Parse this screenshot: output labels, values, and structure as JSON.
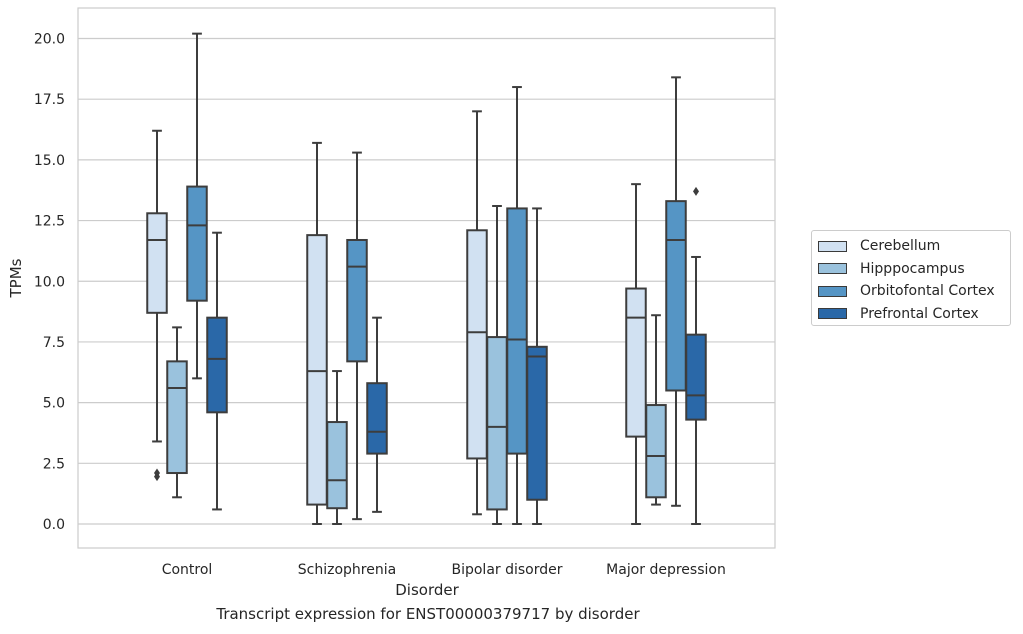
{
  "chart_data": {
    "type": "box",
    "xlabel": "Disorder",
    "ylabel": "TPMs",
    "caption": "Transcript expression for ENST00000379717 by disorder",
    "ylim": [
      -1.0,
      21.2
    ],
    "yticks": [
      "0.0",
      "2.5",
      "5.0",
      "7.5",
      "10.0",
      "12.5",
      "15.0",
      "17.5",
      "20.0"
    ],
    "grid": "horizontal",
    "legend_position": "right",
    "categories": [
      "Control",
      "Schizophrenia",
      "Bipolar disorder",
      "Major depression"
    ],
    "series": [
      {
        "name": "Cerebellum",
        "color": "#d1e1f2",
        "boxes": [
          {
            "whisker_low": 3.4,
            "q1": 8.7,
            "median": 11.7,
            "q3": 12.8,
            "whisker_high": 16.2,
            "outliers": [
              1.95,
              2.1
            ]
          },
          {
            "whisker_low": 0.0,
            "q1": 0.8,
            "median": 6.3,
            "q3": 11.9,
            "whisker_high": 15.7,
            "outliers": []
          },
          {
            "whisker_low": 0.4,
            "q1": 2.7,
            "median": 7.9,
            "q3": 12.1,
            "whisker_high": 17.0,
            "outliers": []
          },
          {
            "whisker_low": 0.0,
            "q1": 3.6,
            "median": 8.5,
            "q3": 9.7,
            "whisker_high": 14.0,
            "outliers": []
          }
        ]
      },
      {
        "name": "Hipppocampus",
        "color": "#9ac2dd",
        "boxes": [
          {
            "whisker_low": 1.1,
            "q1": 2.1,
            "median": 5.6,
            "q3": 6.7,
            "whisker_high": 8.1,
            "outliers": []
          },
          {
            "whisker_low": 0.0,
            "q1": 0.65,
            "median": 1.8,
            "q3": 4.2,
            "whisker_high": 6.3,
            "outliers": []
          },
          {
            "whisker_low": 0.0,
            "q1": 0.6,
            "median": 4.0,
            "q3": 7.7,
            "whisker_high": 13.1,
            "outliers": []
          },
          {
            "whisker_low": 0.8,
            "q1": 1.1,
            "median": 2.8,
            "q3": 4.9,
            "whisker_high": 8.6,
            "outliers": []
          }
        ]
      },
      {
        "name": "Orbitofontal Cortex",
        "color": "#5595c5",
        "boxes": [
          {
            "whisker_low": 6.0,
            "q1": 9.2,
            "median": 12.3,
            "q3": 13.9,
            "whisker_high": 20.2,
            "outliers": []
          },
          {
            "whisker_low": 0.2,
            "q1": 6.7,
            "median": 10.6,
            "q3": 11.7,
            "whisker_high": 15.3,
            "outliers": []
          },
          {
            "whisker_low": 0.0,
            "q1": 2.9,
            "median": 7.6,
            "q3": 13.0,
            "whisker_high": 18.0,
            "outliers": []
          },
          {
            "whisker_low": 0.75,
            "q1": 5.5,
            "median": 11.7,
            "q3": 13.3,
            "whisker_high": 18.4,
            "outliers": []
          }
        ]
      },
      {
        "name": "Prefrontal Cortex",
        "color": "#2a68a8",
        "boxes": [
          {
            "whisker_low": 0.6,
            "q1": 4.6,
            "median": 6.8,
            "q3": 8.5,
            "whisker_high": 12.0,
            "outliers": []
          },
          {
            "whisker_low": 0.5,
            "q1": 2.9,
            "median": 3.8,
            "q3": 5.8,
            "whisker_high": 8.5,
            "outliers": []
          },
          {
            "whisker_low": 0.0,
            "q1": 1.0,
            "median": 6.9,
            "q3": 7.3,
            "whisker_high": 13.0,
            "outliers": []
          },
          {
            "whisker_low": 0.0,
            "q1": 4.3,
            "median": 5.3,
            "q3": 7.8,
            "whisker_high": 11.0,
            "outliers": [
              13.7
            ]
          }
        ]
      }
    ]
  }
}
